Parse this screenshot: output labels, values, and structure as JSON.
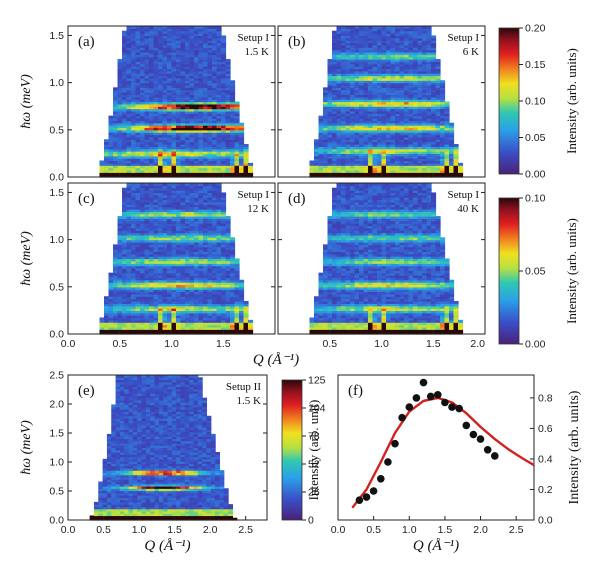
{
  "chart_data": [
    {
      "id": "a",
      "type": "heatmap",
      "panel_label": "(a)",
      "annotation": [
        "Setup I",
        "1.5 K"
      ],
      "ylabel": "ħω (meV)",
      "xlim": [
        0,
        2.0
      ],
      "ylim": [
        0,
        1.6
      ],
      "yticks": [
        "0.0",
        "0.5",
        "1.0",
        "1.5"
      ],
      "bands": [
        {
          "e": 0.75,
          "amp": 0.95,
          "qcenter": 1.25,
          "qwidth": 0.75
        },
        {
          "e": 0.52,
          "amp": 1.0,
          "qcenter": 1.25,
          "qwidth": 0.75
        },
        {
          "e": 0.25,
          "amp": 0.5,
          "qcenter": 1.0,
          "qwidth": 1.0
        }
      ]
    },
    {
      "id": "b",
      "type": "heatmap",
      "panel_label": "(b)",
      "annotation": [
        "Setup I",
        "6 K"
      ],
      "xlim": [
        0,
        2.0
      ],
      "ylim": [
        0,
        1.6
      ],
      "bands": [
        {
          "e": 1.28,
          "amp": 0.35,
          "qcenter": 1.1,
          "qwidth": 0.9
        },
        {
          "e": 1.05,
          "amp": 0.45,
          "qcenter": 1.1,
          "qwidth": 0.9
        },
        {
          "e": 0.78,
          "amp": 0.55,
          "qcenter": 1.1,
          "qwidth": 0.9
        },
        {
          "e": 0.52,
          "amp": 0.55,
          "qcenter": 1.1,
          "qwidth": 0.9
        },
        {
          "e": 0.28,
          "amp": 0.45,
          "qcenter": 1.1,
          "qwidth": 0.9
        }
      ]
    },
    {
      "id": "c",
      "type": "heatmap",
      "panel_label": "(c)",
      "annotation": [
        "Setup I",
        "12 K"
      ],
      "ylabel": "ħω (meV)",
      "xlim": [
        0,
        2.0
      ],
      "ylim": [
        0,
        1.6
      ],
      "yticks": [
        "0.0",
        "0.5",
        "1.0",
        "1.5"
      ],
      "xticks": [
        "0.0",
        "0.5",
        "1.0",
        "1.5"
      ],
      "bands": [
        {
          "e": 1.27,
          "amp": 0.4,
          "qcenter": 1.1,
          "qwidth": 0.9
        },
        {
          "e": 1.02,
          "amp": 0.4,
          "qcenter": 1.1,
          "qwidth": 0.9
        },
        {
          "e": 0.77,
          "amp": 0.45,
          "qcenter": 1.1,
          "qwidth": 0.9
        },
        {
          "e": 0.52,
          "amp": 0.55,
          "qcenter": 1.1,
          "qwidth": 0.9
        },
        {
          "e": 0.27,
          "amp": 0.45,
          "qcenter": 1.1,
          "qwidth": 0.9
        }
      ]
    },
    {
      "id": "d",
      "type": "heatmap",
      "panel_label": "(d)",
      "annotation": [
        "Setup I",
        "40 K"
      ],
      "xlim": [
        0,
        2.0
      ],
      "ylim": [
        0,
        1.6
      ],
      "xticks": [
        "0.5",
        "1.0",
        "1.5",
        "2.0"
      ],
      "xlabel": "Q (Å⁻¹)",
      "bands": [
        {
          "e": 1.27,
          "amp": 0.35,
          "qcenter": 1.1,
          "qwidth": 0.9
        },
        {
          "e": 1.02,
          "amp": 0.35,
          "qcenter": 1.1,
          "qwidth": 0.9
        },
        {
          "e": 0.77,
          "amp": 0.4,
          "qcenter": 1.1,
          "qwidth": 0.9
        },
        {
          "e": 0.52,
          "amp": 0.5,
          "qcenter": 1.1,
          "qwidth": 0.9
        },
        {
          "e": 0.27,
          "amp": 0.45,
          "qcenter": 1.1,
          "qwidth": 0.9
        }
      ]
    },
    {
      "id": "e",
      "type": "heatmap",
      "panel_label": "(e)",
      "annotation": [
        "Setup II",
        "1.5 K"
      ],
      "ylabel": "ħω (meV)",
      "xlabel": "Q (Å⁻¹)",
      "xlim": [
        0,
        2.8
      ],
      "ylim": [
        0,
        2.5
      ],
      "xticks": [
        "0.0",
        "0.5",
        "1.0",
        "1.5",
        "2.0",
        "2.5"
      ],
      "yticks": [
        "0.0",
        "0.5",
        "1.0",
        "1.5",
        "2.0",
        "2.5"
      ],
      "bands": [
        {
          "e": 0.82,
          "amp": 0.9,
          "qcenter": 1.35,
          "qwidth": 0.6
        },
        {
          "e": 0.56,
          "amp": 0.95,
          "qcenter": 1.35,
          "qwidth": 0.6
        }
      ]
    },
    {
      "id": "f",
      "type": "scatter",
      "panel_label": "(f)",
      "xlabel": "Q (Å⁻¹)",
      "ylabel": "Intensity (arb. units)",
      "xlim": [
        0,
        2.75
      ],
      "ylim": [
        0,
        0.95
      ],
      "xticks": [
        "0.0",
        "0.5",
        "1.0",
        "1.5",
        "2.0",
        "2.5"
      ],
      "yticks": [
        "0.0",
        "0.2",
        "0.4",
        "0.6",
        "0.8"
      ],
      "points": {
        "x": [
          0.3,
          0.4,
          0.5,
          0.6,
          0.7,
          0.8,
          0.9,
          1.0,
          1.1,
          1.2,
          1.3,
          1.4,
          1.5,
          1.6,
          1.7,
          1.8,
          1.9,
          2.0,
          2.1,
          2.2
        ],
        "y": [
          0.13,
          0.15,
          0.19,
          0.27,
          0.38,
          0.5,
          0.67,
          0.74,
          0.8,
          0.9,
          0.81,
          0.82,
          0.77,
          0.74,
          0.73,
          0.62,
          0.56,
          0.53,
          0.46,
          0.42
        ]
      },
      "fit": {
        "x": [
          0.2,
          0.4,
          0.6,
          0.8,
          1.0,
          1.2,
          1.4,
          1.6,
          1.8,
          2.0,
          2.2,
          2.4,
          2.6,
          2.75
        ],
        "y": [
          0.08,
          0.2,
          0.38,
          0.57,
          0.71,
          0.78,
          0.8,
          0.77,
          0.7,
          0.61,
          0.53,
          0.46,
          0.4,
          0.36
        ]
      },
      "colors": {
        "points": "#111111",
        "fit": "#d42020"
      }
    }
  ],
  "colorbars": [
    {
      "ticks": [
        "0.00",
        "0.05",
        "0.10",
        "0.15",
        "0.20"
      ],
      "label": "Intensity (arb. units)"
    },
    {
      "ticks": [
        "0.00",
        "0.05",
        "0.10"
      ],
      "label": "Intensity (arb. units)"
    },
    {
      "ticks": [
        "0",
        "26",
        "52",
        "78",
        "104",
        "125"
      ],
      "label": "Intensity (arb. unit)"
    }
  ]
}
